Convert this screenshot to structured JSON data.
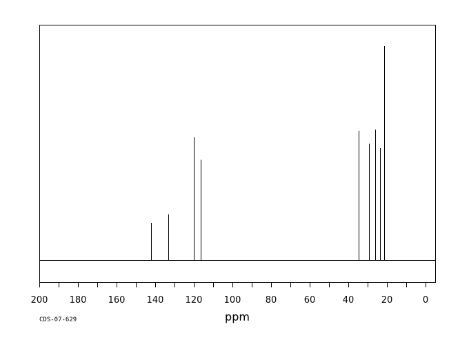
{
  "chart_data": {
    "type": "line",
    "title": "",
    "xlabel": "ppm",
    "ylabel": "",
    "xlim": [
      200,
      -5
    ],
    "ylim": [
      0,
      100
    ],
    "x_reversed": true,
    "grid": false,
    "xticks": [
      "200",
      "180",
      "160",
      "140",
      "120",
      "100",
      "80",
      "60",
      "40",
      "20",
      "0"
    ],
    "xtick_values": [
      200,
      180,
      160,
      140,
      120,
      100,
      80,
      60,
      40,
      20,
      0
    ],
    "peaks": [
      {
        "ppm": 142.1,
        "height": 17.5
      },
      {
        "ppm": 133.1,
        "height": 21.5
      },
      {
        "ppm": 120.1,
        "height": 57.5
      },
      {
        "ppm": 116.6,
        "height": 47.0
      },
      {
        "ppm": 34.7,
        "height": 60.5
      },
      {
        "ppm": 29.4,
        "height": 54.5
      },
      {
        "ppm": 26.0,
        "height": 61.0
      },
      {
        "ppm": 23.6,
        "height": 52.5
      },
      {
        "ppm": 21.6,
        "height": 100.0
      },
      {
        "ppm": 21.3,
        "height": 82.0
      }
    ]
  },
  "footer": {
    "code": "CDS-07-629"
  }
}
